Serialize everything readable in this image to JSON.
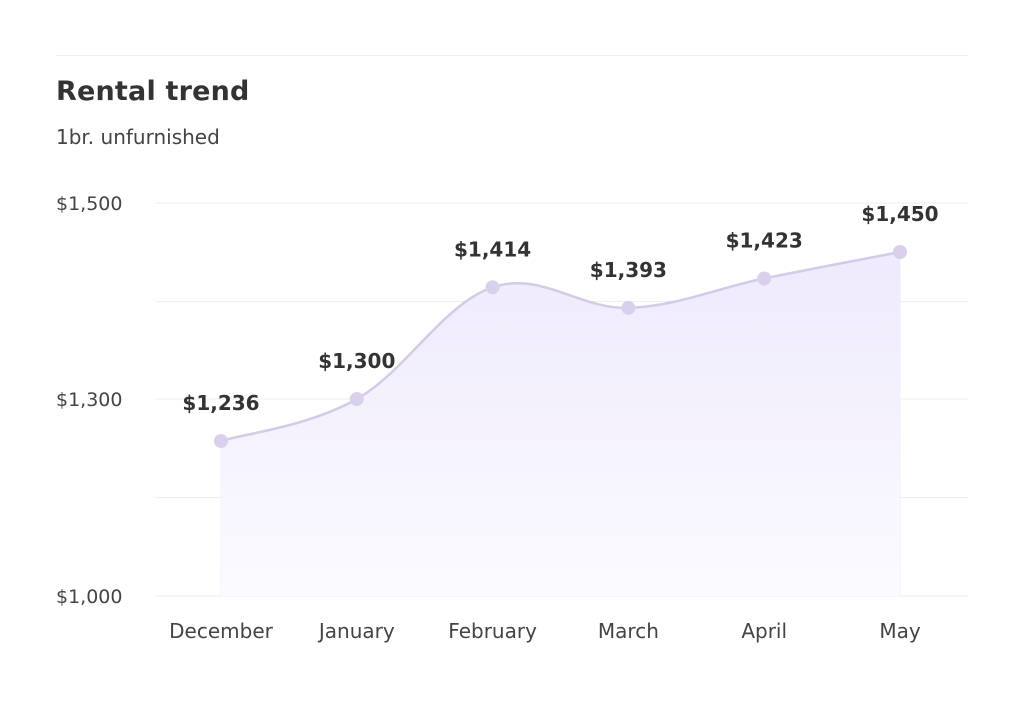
{
  "chart_data": {
    "type": "area",
    "title": "Rental trend",
    "subtitle": "1br. unfurnished",
    "categories": [
      "December",
      "January",
      "February",
      "March",
      "April",
      "May"
    ],
    "series": [
      {
        "values": [
          1236,
          1300,
          1414,
          1393,
          1423,
          1450
        ],
        "data_labels": [
          "$1,236",
          "$1,300",
          "$1,414",
          "$1,393",
          "$1,423",
          "$1,450"
        ]
      }
    ],
    "y_ticks": [
      {
        "value": 1000,
        "label": "$1,000"
      },
      {
        "value": 1300,
        "label": "$1,300"
      },
      {
        "value": 1500,
        "label": "$1,500"
      }
    ],
    "ylim": [
      1000,
      1500
    ],
    "scale_note": "nonlinear axis: $1,000–$1,300 occupies the lower half, $1,300–$1,500 the upper half",
    "grid": true,
    "legend": "none",
    "colors": {
      "line": "#d4cbe8",
      "marker": "#d9d0ec",
      "area_top": "#efeafc",
      "area_bottom": "#fbfaff",
      "grid": "#eeeeee"
    }
  }
}
